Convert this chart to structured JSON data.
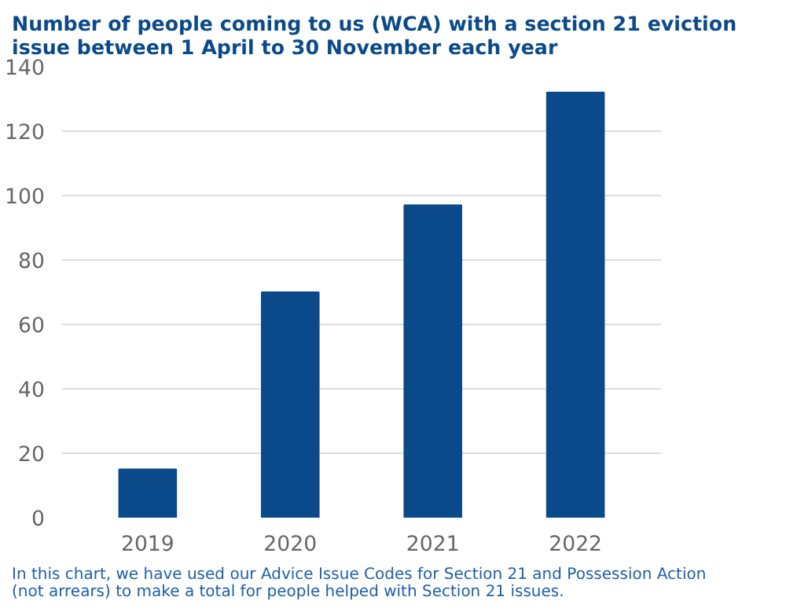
{
  "chart_data": {
    "type": "bar",
    "title": "Number of people coming to us (WCA) with a section 21 eviction issue between 1 April to 30 November each year",
    "categories": [
      "2019",
      "2020",
      "2021",
      "2022"
    ],
    "values": [
      15,
      70,
      97,
      132
    ],
    "color": "#0b4a8a",
    "ylim": [
      0,
      140
    ],
    "yticks": [
      0,
      20,
      40,
      60,
      80,
      100,
      120,
      140
    ],
    "grid": "y",
    "annotations": [
      "In this chart, we have used our Advice Issue Codes for Section 21 and Possession Action (not arrears) to make a total for people helped with Section 21 issues."
    ]
  }
}
